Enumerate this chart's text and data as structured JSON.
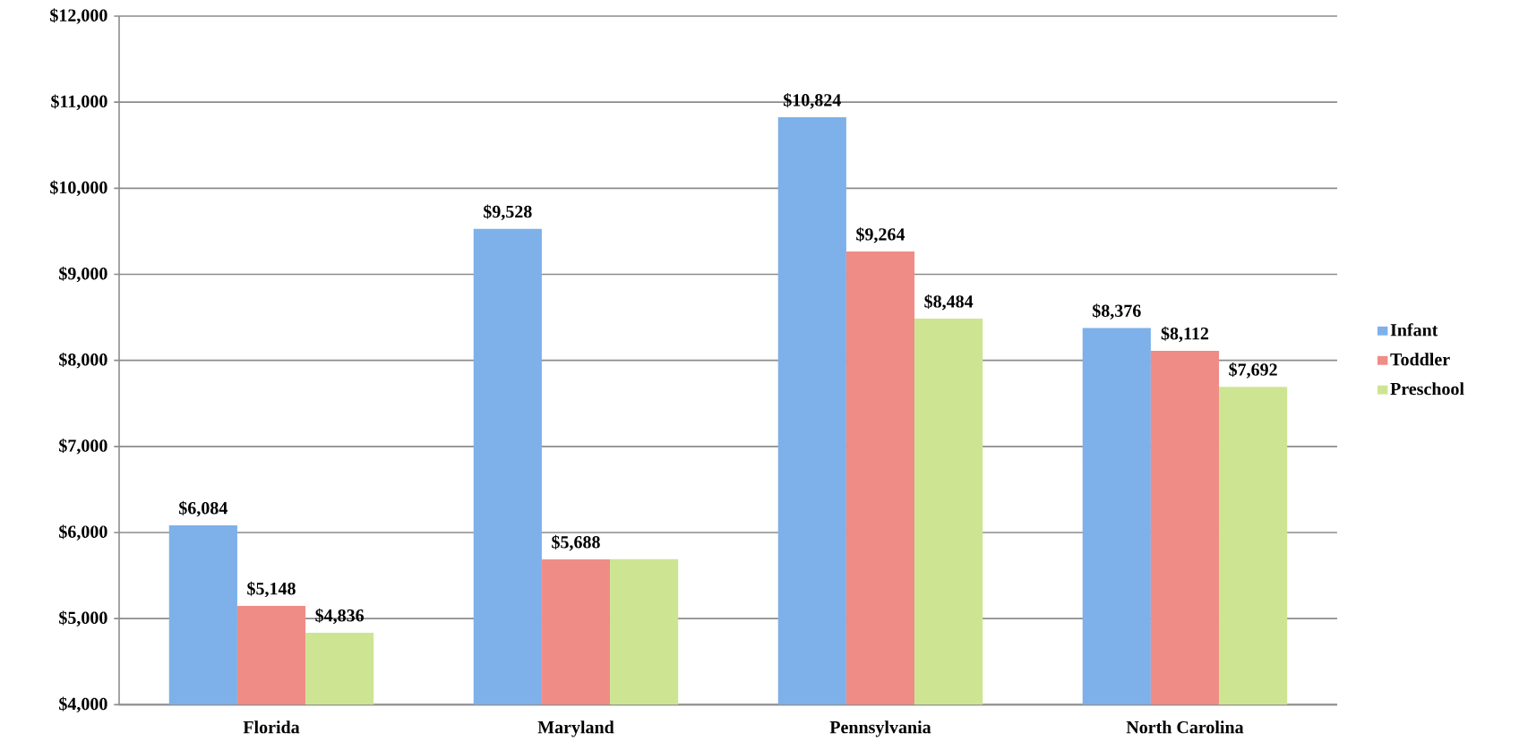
{
  "chart_data": {
    "type": "bar",
    "categories": [
      "Florida",
      "Maryland",
      "Pennsylvania",
      "North Carolina"
    ],
    "series": [
      {
        "name": "Infant",
        "color": "#7eb0ea",
        "values": [
          6084,
          9528,
          10824,
          8376
        ],
        "value_labels": [
          "$6,084",
          "$9,528",
          "$10,824",
          "$8,376"
        ]
      },
      {
        "name": "Toddler",
        "color": "#ef8c86",
        "values": [
          5148,
          5688,
          9264,
          8112
        ],
        "value_labels": [
          "$5,148",
          "$5,688",
          "$9,264",
          "$8,112"
        ]
      },
      {
        "name": "Preschool",
        "color": "#cde592",
        "values": [
          4836,
          5690,
          8484,
          7692
        ],
        "value_labels": [
          "$4,836",
          null,
          "$8,484",
          "$7,692"
        ]
      }
    ],
    "ylim": [
      4000,
      12000
    ],
    "yticks": [
      {
        "value": 4000,
        "label": "$4,000"
      },
      {
        "value": 5000,
        "label": "$5,000"
      },
      {
        "value": 6000,
        "label": "$6,000"
      },
      {
        "value": 7000,
        "label": "$7,000"
      },
      {
        "value": 8000,
        "label": "$8,000"
      },
      {
        "value": 9000,
        "label": "$9,000"
      },
      {
        "value": 10000,
        "label": "$10,000"
      },
      {
        "value": 11000,
        "label": "$11,000"
      },
      {
        "value": 12000,
        "label": "$12,000"
      }
    ],
    "grid": "y",
    "legend": "right"
  }
}
